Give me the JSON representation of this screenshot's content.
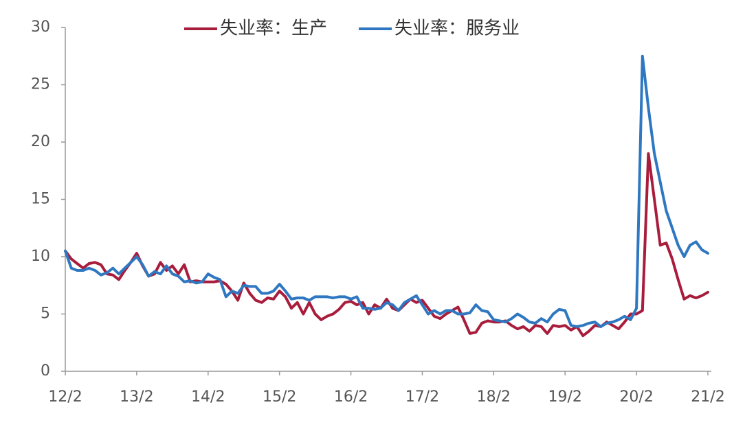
{
  "chart_data": {
    "type": "line",
    "categories": [
      "12/2",
      null,
      null,
      null,
      null,
      null,
      null,
      null,
      null,
      null,
      null,
      null,
      "13/2",
      null,
      null,
      null,
      null,
      null,
      null,
      null,
      null,
      null,
      null,
      null,
      "14/2",
      null,
      null,
      null,
      null,
      null,
      null,
      null,
      null,
      null,
      null,
      null,
      "15/2",
      null,
      null,
      null,
      null,
      null,
      null,
      null,
      null,
      null,
      null,
      null,
      "16/2",
      null,
      null,
      null,
      null,
      null,
      null,
      null,
      null,
      null,
      null,
      null,
      "17/2",
      null,
      null,
      null,
      null,
      null,
      null,
      null,
      null,
      null,
      null,
      null,
      "18/2",
      null,
      null,
      null,
      null,
      null,
      null,
      null,
      null,
      null,
      null,
      null,
      "19/2",
      null,
      null,
      null,
      null,
      null,
      null,
      null,
      null,
      null,
      null,
      null,
      "20/2",
      null,
      null,
      null,
      null,
      null,
      null,
      null,
      null,
      null,
      null,
      null,
      "21/2"
    ],
    "series": [
      {
        "name": "失业率：生产",
        "color": "#a81c3c",
        "values": [
          10.5,
          9.8,
          9.4,
          9.0,
          9.4,
          9.5,
          9.3,
          8.5,
          8.4,
          8.0,
          8.8,
          9.5,
          10.3,
          9.2,
          8.3,
          8.5,
          9.5,
          8.8,
          9.2,
          8.5,
          9.3,
          7.8,
          7.9,
          7.8,
          7.8,
          7.8,
          7.9,
          7.6,
          7.0,
          6.2,
          7.7,
          6.8,
          6.2,
          6.0,
          6.4,
          6.3,
          7.0,
          6.5,
          5.5,
          6.0,
          5.0,
          6.0,
          5.0,
          4.5,
          4.8,
          5.0,
          5.4,
          6.0,
          6.1,
          5.8,
          6.0,
          5.0,
          5.8,
          5.5,
          6.3,
          5.5,
          5.3,
          5.8,
          6.3,
          6.0,
          6.2,
          5.5,
          4.8,
          4.6,
          5.0,
          5.3,
          5.6,
          4.5,
          3.3,
          3.4,
          4.2,
          4.4,
          4.3,
          4.3,
          4.4,
          4.0,
          3.7,
          3.9,
          3.5,
          4.0,
          3.9,
          3.3,
          4.0,
          3.9,
          4.0,
          3.6,
          3.9,
          3.1,
          3.5,
          4.0,
          3.9,
          4.3,
          4.0,
          3.7,
          4.3,
          5.0,
          5.0,
          5.3,
          19.0,
          15.0,
          11.0,
          11.2,
          9.8,
          8.0,
          6.3,
          6.6,
          6.4,
          6.6,
          6.9
        ]
      },
      {
        "name": "失业率：服务业",
        "color": "#2f78c1",
        "values": [
          10.5,
          9.0,
          8.8,
          8.8,
          9.0,
          8.8,
          8.4,
          8.6,
          9.0,
          8.5,
          9.0,
          9.5,
          10.0,
          9.3,
          8.3,
          8.7,
          8.5,
          9.2,
          8.5,
          8.3,
          7.8,
          7.9,
          7.7,
          7.8,
          8.5,
          8.2,
          8.0,
          6.5,
          7.0,
          6.8,
          7.5,
          7.4,
          7.4,
          6.8,
          6.8,
          7.0,
          7.6,
          7.0,
          6.3,
          6.4,
          6.4,
          6.2,
          6.5,
          6.5,
          6.5,
          6.4,
          6.5,
          6.5,
          6.3,
          6.5,
          5.5,
          5.5,
          5.4,
          5.5,
          6.0,
          5.8,
          5.3,
          6.0,
          6.3,
          6.6,
          5.8,
          5.0,
          5.3,
          5.0,
          5.3,
          5.3,
          5.0,
          5.0,
          5.1,
          5.8,
          5.3,
          5.2,
          4.5,
          4.4,
          4.3,
          4.6,
          5.0,
          4.7,
          4.3,
          4.2,
          4.6,
          4.3,
          5.0,
          5.4,
          5.3,
          4.0,
          3.9,
          4.0,
          4.2,
          4.3,
          3.9,
          4.2,
          4.3,
          4.5,
          4.8,
          4.5,
          5.5,
          27.5,
          23.0,
          19.0,
          16.5,
          14.0,
          12.5,
          11.0,
          10.0,
          11.0,
          11.3,
          10.6,
          10.3
        ]
      }
    ],
    "ylim": [
      0,
      30
    ],
    "yticks": [
      0,
      5,
      10,
      15,
      20,
      25,
      30
    ],
    "grid": false,
    "legend": "top"
  }
}
